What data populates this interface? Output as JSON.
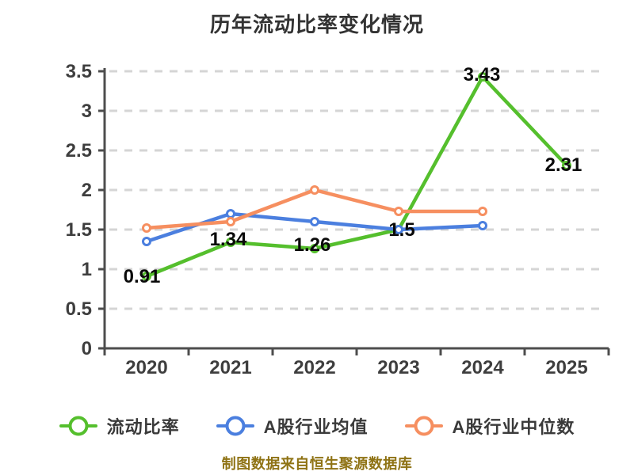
{
  "title": "历年流动比率变化情况",
  "footer": "制图数据来自恒生聚源数据库",
  "colors": {
    "background": "#ffffff",
    "title_text": "#333333",
    "axis": "#4d4d4d",
    "grid": "#d5d5d5",
    "tick_label": "#3e3e3e",
    "point_label": "#0a0a0a",
    "footer_text": "#8f7315",
    "series_green": "#55bf2d",
    "series_blue": "#4b7fdf",
    "series_orange": "#f68f60"
  },
  "chart_data": {
    "type": "line",
    "title": "历年流动比率变化情况",
    "categories": [
      "2020",
      "2021",
      "2022",
      "2023",
      "2024",
      "2025"
    ],
    "series": [
      {
        "name": "流动比率",
        "color": "#55bf2d",
        "values": [
          0.91,
          1.34,
          1.26,
          1.5,
          3.43,
          2.31
        ],
        "point_labels": [
          "0.91",
          "1.34",
          "1.26",
          "1.5",
          "3.43",
          "2.31"
        ],
        "label_offsets": [
          [
            -6,
            8
          ],
          [
            -3,
            4
          ],
          [
            -3,
            3
          ],
          [
            4,
            8
          ],
          [
            -1,
            5
          ],
          [
            -4,
            7
          ]
        ]
      },
      {
        "name": "A股行业均值",
        "color": "#4b7fdf",
        "values": [
          1.35,
          1.7,
          1.6,
          1.5,
          1.55,
          null
        ],
        "point_labels": null,
        "label_offsets": null
      },
      {
        "name": "A股行业中位数",
        "color": "#f68f60",
        "values": [
          1.52,
          1.6,
          2.0,
          1.73,
          1.73,
          null
        ],
        "point_labels": null,
        "label_offsets": null
      }
    ],
    "xlabel": "",
    "ylabel": "",
    "ylim": [
      0,
      3.5
    ],
    "ytick_step": 0.5,
    "ytick_labels": [
      "0",
      "0.5",
      "1",
      "1.5",
      "2",
      "2.5",
      "3",
      "3.5"
    ],
    "grid": "dashed horizontal",
    "legend_position": "bottom",
    "marker": "circle-white-fill",
    "footnote": "制图数据来自恒生聚源数据库"
  }
}
